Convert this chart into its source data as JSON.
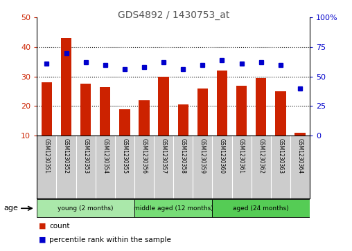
{
  "title": "GDS4892 / 1430753_at",
  "samples": [
    "GSM1230351",
    "GSM1230352",
    "GSM1230353",
    "GSM1230354",
    "GSM1230355",
    "GSM1230356",
    "GSM1230357",
    "GSM1230358",
    "GSM1230359",
    "GSM1230360",
    "GSM1230361",
    "GSM1230362",
    "GSM1230363",
    "GSM1230364"
  ],
  "counts": [
    28,
    43,
    27.5,
    26.5,
    19,
    22,
    30,
    20.5,
    26,
    32,
    27,
    29.5,
    25,
    11
  ],
  "percentile_ranks": [
    61,
    70,
    62,
    60,
    56,
    58,
    62,
    56,
    60,
    64,
    61,
    62,
    60,
    40
  ],
  "groups": [
    {
      "label": "young (2 months)",
      "start": 0,
      "end": 5,
      "color": "#aae8aa"
    },
    {
      "label": "middle aged (12 months)",
      "start": 5,
      "end": 9,
      "color": "#77dd77"
    },
    {
      "label": "aged (24 months)",
      "start": 9,
      "end": 14,
      "color": "#55cc55"
    }
  ],
  "bar_color": "#cc2200",
  "dot_color": "#0000cc",
  "left_ylim": [
    10,
    50
  ],
  "right_ylim": [
    0,
    100
  ],
  "left_yticks": [
    10,
    20,
    30,
    40,
    50
  ],
  "right_yticks": [
    0,
    25,
    50,
    75,
    100
  ],
  "right_yticklabels": [
    "0",
    "25",
    "50",
    "75",
    "100%"
  ],
  "grid_values": [
    20,
    30,
    40
  ],
  "legend_items": [
    {
      "label": "count",
      "color": "#cc2200"
    },
    {
      "label": "percentile rank within the sample",
      "color": "#0000cc"
    }
  ],
  "age_label": "age",
  "background_color": "#ffffff",
  "tick_bg_color": "#cccccc",
  "bar_bottom": 10,
  "title_color": "#555555"
}
